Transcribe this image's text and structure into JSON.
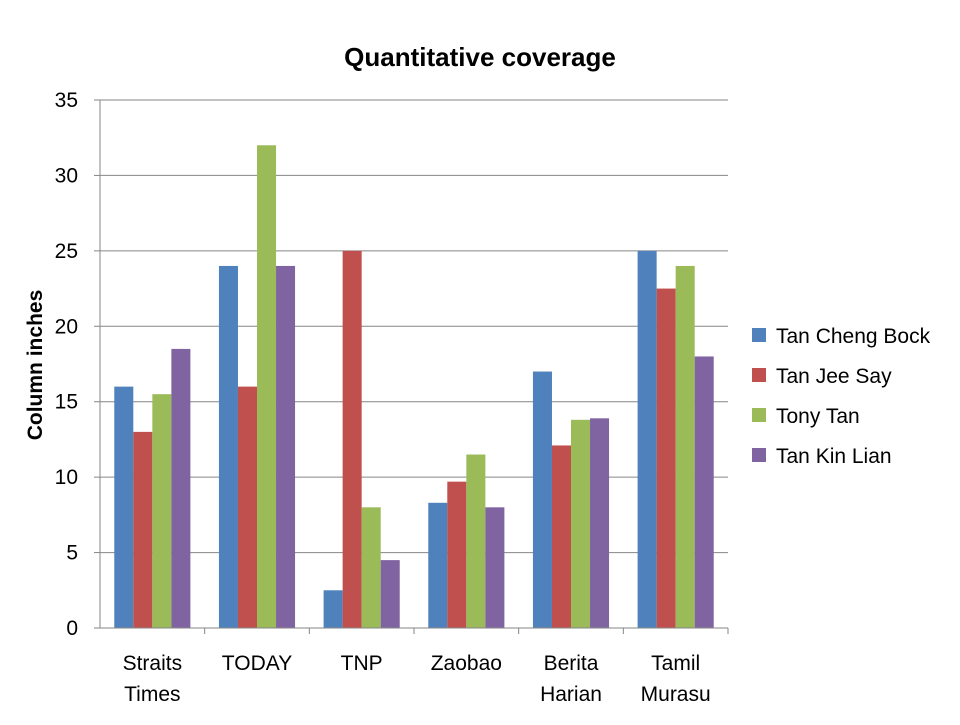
{
  "chart_data": {
    "type": "bar",
    "title": "Quantitative coverage",
    "xlabel": "",
    "ylabel": "Column inches",
    "ylim": [
      0,
      35
    ],
    "ytick_step": 5,
    "grid": true,
    "legend_position": "right",
    "categories": [
      [
        "Straits",
        "Times"
      ],
      [
        "TODAY"
      ],
      [
        "TNP"
      ],
      [
        "Zaobao"
      ],
      [
        "Berita",
        "Harian"
      ],
      [
        "Tamil",
        "Murasu"
      ]
    ],
    "series": [
      {
        "name": "Tan Cheng Bock",
        "color": "#4F81BD",
        "values": [
          16,
          24,
          2.5,
          8.3,
          17,
          25
        ]
      },
      {
        "name": "Tan Jee Say",
        "color": "#C0504D",
        "values": [
          13,
          16,
          25,
          9.7,
          12.1,
          22.5
        ]
      },
      {
        "name": "Tony Tan",
        "color": "#9BBB59",
        "values": [
          15.5,
          32,
          8,
          11.5,
          13.8,
          24
        ]
      },
      {
        "name": "Tan Kin Lian",
        "color": "#8064A2",
        "values": [
          18.5,
          24,
          4.5,
          8,
          13.9,
          18
        ]
      }
    ]
  }
}
